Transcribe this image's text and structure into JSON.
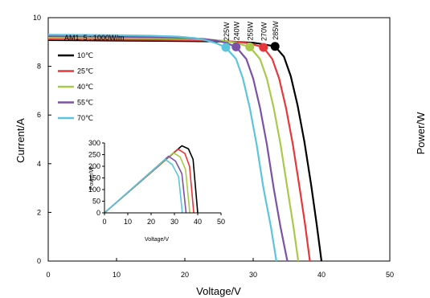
{
  "chart_data": [
    {
      "type": "line",
      "xlabel": "Voltage/V",
      "ylabel": "Current/A",
      "xlim": [
        0,
        50
      ],
      "ylim": [
        0,
        10
      ],
      "xticks": [
        "0",
        "10",
        "20",
        "30",
        "40",
        "50"
      ],
      "yticks": [
        "0",
        "2",
        "4",
        "6",
        "8",
        "10"
      ],
      "grid": false,
      "legend_position": "top-left",
      "annotation": "AM1. 5 ; 1000W/m",
      "series": [
        {
          "name": "10℃",
          "color": "#000000",
          "isc": 9.08,
          "voc": 40.0,
          "vmp": 33.2,
          "imp": 8.82,
          "pmax_label": "285W",
          "x": [
            0,
            5,
            10,
            15,
            20,
            25,
            28,
            30,
            31,
            32,
            33.2,
            34.5,
            35.5,
            36.5,
            37.5,
            38.5,
            39.3,
            40.0
          ],
          "y": [
            9.08,
            9.07,
            9.06,
            9.05,
            9.04,
            9.02,
            9.0,
            8.97,
            8.93,
            8.88,
            8.82,
            8.4,
            7.6,
            6.4,
            4.9,
            3.1,
            1.5,
            0
          ]
        },
        {
          "name": "25℃",
          "color": "#e8373a",
          "isc": 9.12,
          "voc": 38.3,
          "vmp": 31.5,
          "imp": 8.78,
          "pmax_label": "270W",
          "x": [
            0,
            5,
            10,
            15,
            20,
            25,
            27,
            29,
            30,
            31.5,
            32.8,
            33.8,
            34.8,
            35.8,
            36.8,
            37.6,
            38.3
          ],
          "y": [
            9.12,
            9.11,
            9.1,
            9.09,
            9.08,
            9.05,
            9.02,
            8.96,
            8.9,
            8.78,
            8.3,
            7.5,
            6.3,
            4.8,
            3.0,
            1.5,
            0
          ]
        },
        {
          "name": "40℃",
          "color": "#a9c94b",
          "isc": 9.18,
          "voc": 36.6,
          "vmp": 29.5,
          "imp": 8.8,
          "pmax_label": "255W",
          "x": [
            0,
            5,
            10,
            15,
            20,
            24,
            26,
            27.5,
            29.5,
            31,
            32,
            33,
            34,
            35,
            35.9,
            36.6
          ],
          "y": [
            9.18,
            9.17,
            9.16,
            9.15,
            9.13,
            9.09,
            9.04,
            8.96,
            8.8,
            8.3,
            7.5,
            6.3,
            4.8,
            3.0,
            1.4,
            0
          ]
        },
        {
          "name": "55℃",
          "color": "#7b52a6",
          "isc": 9.24,
          "voc": 35.0,
          "vmp": 27.5,
          "imp": 8.8,
          "pmax_label": "240W",
          "x": [
            0,
            5,
            10,
            15,
            20,
            23,
            24.5,
            26,
            27.5,
            29,
            30,
            31,
            32,
            33,
            34,
            35
          ],
          "y": [
            9.24,
            9.23,
            9.22,
            9.2,
            9.17,
            9.12,
            9.06,
            8.97,
            8.8,
            8.3,
            7.5,
            6.3,
            4.8,
            3.0,
            1.4,
            0
          ]
        },
        {
          "name": "70℃",
          "color": "#5bc5dc",
          "isc": 9.3,
          "voc": 33.4,
          "vmp": 26.0,
          "imp": 8.78,
          "pmax_label": "225W",
          "x": [
            0,
            5,
            10,
            15,
            19,
            21.5,
            23,
            24.5,
            26,
            27.5,
            28.5,
            29.5,
            30.5,
            31.5,
            32.6,
            33.4
          ],
          "y": [
            9.3,
            9.29,
            9.28,
            9.26,
            9.22,
            9.16,
            9.08,
            8.96,
            8.78,
            8.3,
            7.5,
            6.3,
            4.8,
            3.0,
            1.4,
            0
          ]
        }
      ]
    },
    {
      "type": "line",
      "xlabel": "Voltage/V",
      "ylabel": "Power/W",
      "xlim": [
        0,
        50
      ],
      "ylim": [
        0,
        300
      ],
      "xticks": [
        "0",
        "10",
        "20",
        "30",
        "40",
        "50"
      ],
      "yticks": [
        "0",
        "50",
        "100",
        "150",
        "200",
        "250",
        "300"
      ],
      "series": [
        {
          "name": "10℃",
          "color": "#000000",
          "x": [
            0,
            33.2,
            36,
            38,
            40
          ],
          "y": [
            0,
            288,
            275,
            230,
            0
          ]
        },
        {
          "name": "25℃",
          "color": "#e8373a",
          "x": [
            0,
            31.5,
            34.5,
            36.5,
            38.3
          ],
          "y": [
            0,
            274,
            255,
            200,
            0
          ]
        },
        {
          "name": "40℃",
          "color": "#a9c94b",
          "x": [
            0,
            29.5,
            32.5,
            34.8,
            36.6
          ],
          "y": [
            0,
            258,
            240,
            185,
            0
          ]
        },
        {
          "name": "55℃",
          "color": "#7b52a6",
          "x": [
            0,
            27.5,
            30.5,
            33.2,
            35.0
          ],
          "y": [
            0,
            243,
            222,
            168,
            0
          ]
        },
        {
          "name": "70℃",
          "color": "#5bc5dc",
          "x": [
            0,
            26.0,
            29,
            31.8,
            33.4
          ],
          "y": [
            0,
            230,
            208,
            155,
            0
          ]
        }
      ]
    }
  ],
  "right_axis_label": "Power/W"
}
